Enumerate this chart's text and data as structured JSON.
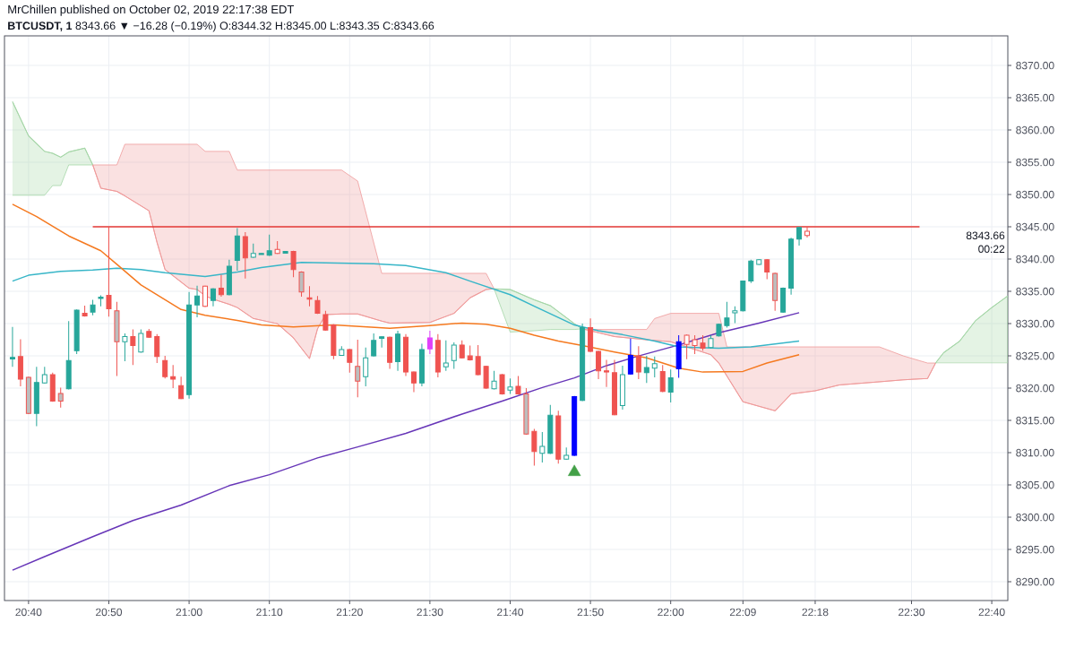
{
  "chart_data": {
    "type": "candlestick",
    "title": "MrChillen published on October 02, 2019 22:17:38 EDT",
    "subtitle": "**BTCUSDT, 1** 8343.66 ▼ −16.28 (−0.19%) O:8344.32 H:8345.00 L:8343.35 C:8343.66",
    "annotations": [
      "8343.66",
      "00:22"
    ],
    "xlim": [
      "2019-10-02T20:37",
      "2019-10-02T22:42"
    ],
    "ylim": [
      8287.1,
      8374.6
    ],
    "xticks": [
      {
        "value": "2019-10-02T20:40",
        "label": "20:40"
      },
      {
        "value": "2019-10-02T20:50",
        "label": "20:50"
      },
      {
        "value": "2019-10-02T21:00",
        "label": "21:00"
      },
      {
        "value": "2019-10-02T21:10",
        "label": "21:10"
      },
      {
        "value": "2019-10-02T21:20",
        "label": "21:20"
      },
      {
        "value": "2019-10-02T21:30",
        "label": "21:30"
      },
      {
        "value": "2019-10-02T21:40",
        "label": "21:40"
      },
      {
        "value": "2019-10-02T21:50",
        "label": "21:50"
      },
      {
        "value": "2019-10-02T22:00",
        "label": "22:00"
      },
      {
        "value": "2019-10-02T22:09",
        "label": "22:09"
      },
      {
        "value": "2019-10-02T22:18",
        "label": "22:18"
      },
      {
        "value": "2019-10-02T22:30",
        "label": "22:30"
      },
      {
        "value": "2019-10-02T22:40",
        "label": "22:40"
      }
    ],
    "yticks": [
      {
        "value": 8290,
        "label": "8290.00"
      },
      {
        "value": 8295,
        "label": "8295.00"
      },
      {
        "value": 8300,
        "label": "8300.00"
      },
      {
        "value": 8305,
        "label": "8305.00"
      },
      {
        "value": 8310,
        "label": "8310.00"
      },
      {
        "value": 8315,
        "label": "8315.00"
      },
      {
        "value": 8320,
        "label": "8320.00"
      },
      {
        "value": 8325,
        "label": "8325.00"
      },
      {
        "value": 8330,
        "label": "8330.00"
      },
      {
        "value": 8335,
        "label": "8335.00"
      },
      {
        "value": 8340,
        "label": "8340.00"
      },
      {
        "value": 8345,
        "label": "8345.00"
      },
      {
        "value": 8350,
        "label": "8350.00"
      },
      {
        "value": 8355,
        "label": "8355.00"
      },
      {
        "value": 8360,
        "label": "8360.00"
      },
      {
        "value": 8365,
        "label": "8365.00"
      },
      {
        "value": 8370,
        "label": "8370.00"
      }
    ],
    "grid": true,
    "series": [
      {
        "type": "line",
        "color": "#a5d6a7",
        "x": [
          "2019-10-02T20:38",
          "2019-10-02T20:40",
          "2019-10-02T20:42",
          "2019-10-02T20:43",
          "2019-10-02T20:44",
          "2019-10-02T20:45",
          "2019-10-02T20:47",
          "2019-10-02T20:48"
        ],
        "values": [
          8364.4,
          8359.1,
          8356.7,
          8356.4,
          8355.8,
          8356.6,
          8357.2,
          8354.6
        ],
        "upper": [
          8364.4,
          8359.1,
          8356.7,
          8356.4,
          8355.8,
          8356.6,
          8357.2,
          8354.6
        ],
        "lower": [
          8349.9,
          8349.9,
          8349.9,
          8351.4,
          8351.4,
          8354.6,
          8354.6,
          8354.6
        ]
      },
      {
        "type": "line",
        "color": "#ef9a9a",
        "x": [
          "2019-10-02T20:48",
          "2019-10-02T20:49",
          "2019-10-02T20:51",
          "2019-10-02T20:52",
          "2019-10-02T20:55",
          "2019-10-02T20:56",
          "2019-10-02T20:57",
          "2019-10-02T21:00",
          "2019-10-02T21:01",
          "2019-10-02T21:02",
          "2019-10-02T21:03",
          "2019-10-02T21:05",
          "2019-10-02T21:06",
          "2019-10-02T21:08",
          "2019-10-02T21:11",
          "2019-10-02T21:13",
          "2019-10-02T21:15",
          "2019-10-02T21:16",
          "2019-10-02T21:17",
          "2019-10-02T21:19",
          "2019-10-02T21:21",
          "2019-10-02T21:24",
          "2019-10-02T21:25",
          "2019-10-02T21:30",
          "2019-10-02T21:33",
          "2019-10-02T21:35",
          "2019-10-02T21:37",
          "2019-10-02T21:38"
        ],
        "values": [
          8354.6,
          8351.0,
          8350.5,
          8349.8,
          8347.5,
          8342.6,
          8338.4,
          8335.5,
          8335.3,
          8334.3,
          8333.8,
          8333.0,
          8332.5,
          8330.8,
          8330.0,
          8327.8,
          8324.6,
          8329.2,
          8331.4,
          8331.5,
          8331.5,
          8330.4,
          8330.1,
          8330.2,
          8331.6,
          8334.0,
          8335.3,
          8335.4
        ],
        "upper": [
          8354.6,
          8354.6,
          8354.6,
          8357.8,
          8357.8,
          8357.8,
          8357.8,
          8357.8,
          8357.8,
          8356.7,
          8356.7,
          8356.7,
          8353.8,
          8353.8,
          8353.8,
          8353.8,
          8353.8,
          8353.8,
          8353.8,
          8353.8,
          8352.1,
          8337.8,
          8337.8,
          8337.8,
          8337.8,
          8337.8,
          8337.8,
          8335.4
        ],
        "lower": [
          8354.6,
          8351.0,
          8350.5,
          8349.8,
          8347.5,
          8342.6,
          8338.4,
          8335.5,
          8335.3,
          8334.3,
          8333.8,
          8333.0,
          8332.5,
          8330.8,
          8330.0,
          8327.8,
          8324.6,
          8329.2,
          8331.4,
          8331.5,
          8331.5,
          8330.4,
          8330.1,
          8330.2,
          8331.6,
          8334.0,
          8335.3,
          8335.4
        ]
      },
      {
        "type": "line",
        "color": "#a5d6a7",
        "x": [
          "2019-10-02T21:38",
          "2019-10-02T21:40",
          "2019-10-02T21:43",
          "2019-10-02T21:45",
          "2019-10-02T21:48",
          "2019-10-02T21:49"
        ],
        "values": [
          8335.4,
          8335.3,
          8333.7,
          8332.8,
          8330.0,
          8329.2
        ],
        "upper": [
          8335.4,
          8335.3,
          8333.7,
          8332.8,
          8330.0,
          8329.2
        ],
        "lower": [
          8335.4,
          8328.7,
          8328.9,
          8329.1,
          8329.1,
          8329.2
        ]
      },
      {
        "type": "line",
        "color": "#ef9a9a",
        "x": [
          "2019-10-02T21:49",
          "2019-10-02T21:50",
          "2019-10-02T21:53",
          "2019-10-02T21:57",
          "2019-10-02T21:58",
          "2019-10-02T22:00",
          "2019-10-02T22:05",
          "2019-10-02T22:06",
          "2019-10-02T22:07",
          "2019-10-02T22:09",
          "2019-10-02T22:13",
          "2019-10-02T22:15",
          "2019-10-02T22:18",
          "2019-10-02T22:21",
          "2019-10-02T22:26",
          "2019-10-02T22:29",
          "2019-10-02T22:32",
          "2019-10-02T22:33"
        ],
        "values": [
          8329.2,
          8328.9,
          8328.0,
          8327.5,
          8327.4,
          8327.2,
          8325.2,
          8323.9,
          8321.9,
          8317.9,
          8316.5,
          8319.1,
          8319.6,
          8320.5,
          8321.0,
          8321.3,
          8321.5,
          8323.9
        ],
        "upper": [
          8329.2,
          8329.1,
          8329.1,
          8329.1,
          8330.8,
          8331.6,
          8331.6,
          8331.6,
          8326.4,
          8326.4,
          8326.4,
          8326.4,
          8326.4,
          8326.4,
          8326.4,
          8325.0,
          8323.9,
          8323.9
        ],
        "lower": [
          8329.2,
          8328.9,
          8328.0,
          8327.5,
          8327.4,
          8327.2,
          8325.2,
          8323.9,
          8321.9,
          8317.9,
          8316.5,
          8319.1,
          8319.6,
          8320.5,
          8321.0,
          8321.3,
          8321.5,
          8323.9
        ]
      },
      {
        "type": "line",
        "color": "#a5d6a7",
        "x": [
          "2019-10-02T22:33",
          "2019-10-02T22:34",
          "2019-10-02T22:36",
          "2019-10-02T22:38",
          "2019-10-02T22:40",
          "2019-10-02T22:42"
        ],
        "values": [
          8323.9,
          8325.5,
          8327.3,
          8330.5,
          8332.5,
          8334.3
        ],
        "upper": [
          8323.9,
          8325.5,
          8327.3,
          8330.5,
          8332.5,
          8334.3
        ],
        "lower": [
          8323.9,
          8323.9,
          8323.9,
          8323.9,
          8323.9,
          8323.9
        ]
      },
      {
        "type": "line",
        "color": "#6736b8",
        "x": [
          "2019-10-02T20:38",
          "2019-10-02T20:42",
          "2019-10-02T20:48",
          "2019-10-02T20:53",
          "2019-10-02T20:59",
          "2019-10-02T21:05",
          "2019-10-02T21:10",
          "2019-10-02T21:16",
          "2019-10-02T21:21",
          "2019-10-02T21:27",
          "2019-10-02T21:34",
          "2019-10-02T21:39",
          "2019-10-02T21:44",
          "2019-10-02T21:48",
          "2019-10-02T21:52",
          "2019-10-02T21:56",
          "2019-10-02T22:01",
          "2019-10-02T22:06",
          "2019-10-02T22:11",
          "2019-10-02T22:16"
        ],
        "values": [
          8291.8,
          8293.9,
          8297.0,
          8299.5,
          8301.9,
          8304.9,
          8306.6,
          8309.2,
          8310.9,
          8313.0,
          8316.0,
          8318.0,
          8320.1,
          8321.6,
          8323.5,
          8325.0,
          8326.7,
          8328.6,
          8330.1,
          8331.7
        ]
      },
      {
        "type": "line",
        "color": "#38b6c8",
        "x": [
          "2019-10-02T20:38",
          "2019-10-02T20:40",
          "2019-10-02T20:44",
          "2019-10-02T20:48",
          "2019-10-02T20:51",
          "2019-10-02T20:54",
          "2019-10-02T20:57",
          "2019-10-02T21:02",
          "2019-10-02T21:06",
          "2019-10-02T21:09",
          "2019-10-02T21:14",
          "2019-10-02T21:23",
          "2019-10-02T21:27",
          "2019-10-02T21:32",
          "2019-10-02T21:35",
          "2019-10-02T21:40",
          "2019-10-02T21:43",
          "2019-10-02T21:48",
          "2019-10-02T21:51",
          "2019-10-02T21:54",
          "2019-10-02T21:58",
          "2019-10-02T22:01",
          "2019-10-02T22:06",
          "2019-10-02T22:10",
          "2019-10-02T22:16"
        ],
        "values": [
          8336.6,
          8337.5,
          8338.1,
          8338.3,
          8338.6,
          8338.4,
          8337.9,
          8337.3,
          8338.0,
          8338.7,
          8339.5,
          8339.3,
          8339.0,
          8337.9,
          8336.6,
          8334.5,
          8332.7,
          8329.8,
          8328.9,
          8328.3,
          8327.3,
          8326.4,
          8326.2,
          8326.4,
          8327.3
        ]
      },
      {
        "type": "line",
        "color": "#f5791f",
        "x": [
          "2019-10-02T20:38",
          "2019-10-02T20:41",
          "2019-10-02T20:45",
          "2019-10-02T20:49",
          "2019-10-02T20:51",
          "2019-10-02T20:54",
          "2019-10-02T20:57",
          "2019-10-02T20:59",
          "2019-10-02T21:02",
          "2019-10-02T21:06",
          "2019-10-02T21:09",
          "2019-10-02T21:13",
          "2019-10-02T21:18",
          "2019-10-02T21:25",
          "2019-10-02T21:30",
          "2019-10-02T21:34",
          "2019-10-02T21:37",
          "2019-10-02T21:40",
          "2019-10-02T21:43",
          "2019-10-02T21:46",
          "2019-10-02T21:49",
          "2019-10-02T21:53",
          "2019-10-02T21:57",
          "2019-10-02T22:01",
          "2019-10-02T22:04",
          "2019-10-02T22:09",
          "2019-10-02T22:12",
          "2019-10-02T22:16"
        ],
        "values": [
          8348.5,
          8346.6,
          8343.6,
          8341.3,
          8339.2,
          8336.0,
          8333.7,
          8332.2,
          8331.3,
          8330.5,
          8329.8,
          8329.5,
          8329.8,
          8329.3,
          8329.7,
          8330.1,
          8329.9,
          8329.3,
          8328.2,
          8327.3,
          8326.6,
          8325.6,
          8324.7,
          8323.1,
          8322.5,
          8322.6,
          8323.9,
          8325.2
        ]
      },
      {
        "type": "line",
        "color": "#e53935",
        "x": [
          "2019-10-02T20:48",
          "2019-10-02T22:31"
        ],
        "values": [
          8345,
          8345
        ]
      },
      {
        "x": [
          "2019-10-02T20:38",
          "2019-10-02T20:39",
          "2019-10-02T20:40",
          "2019-10-02T20:41",
          "2019-10-02T20:42",
          "2019-10-02T20:43",
          "2019-10-02T20:44",
          "2019-10-02T20:45",
          "2019-10-02T20:46",
          "2019-10-02T20:47",
          "2019-10-02T20:48",
          "2019-10-02T20:49",
          "2019-10-02T20:50",
          "2019-10-02T20:51",
          "2019-10-02T20:52",
          "2019-10-02T20:53",
          "2019-10-02T20:54",
          "2019-10-02T20:55",
          "2019-10-02T20:56",
          "2019-10-02T20:57",
          "2019-10-02T20:58",
          "2019-10-02T20:59",
          "2019-10-02T21:00",
          "2019-10-02T21:01",
          "2019-10-02T21:02",
          "2019-10-02T21:03",
          "2019-10-02T21:04",
          "2019-10-02T21:05",
          "2019-10-02T21:06",
          "2019-10-02T21:07",
          "2019-10-02T21:08",
          "2019-10-02T21:09",
          "2019-10-02T21:10",
          "2019-10-02T21:11",
          "2019-10-02T21:12",
          "2019-10-02T21:13",
          "2019-10-02T21:14",
          "2019-10-02T21:15",
          "2019-10-02T21:16",
          "2019-10-02T21:17",
          "2019-10-02T21:18",
          "2019-10-02T21:19",
          "2019-10-02T21:20",
          "2019-10-02T21:21",
          "2019-10-02T21:22",
          "2019-10-02T21:23",
          "2019-10-02T21:24",
          "2019-10-02T21:25",
          "2019-10-02T21:26",
          "2019-10-02T21:27",
          "2019-10-02T21:28",
          "2019-10-02T21:29",
          "2019-10-02T21:30",
          "2019-10-02T21:31",
          "2019-10-02T21:32",
          "2019-10-02T21:33",
          "2019-10-02T21:34",
          "2019-10-02T21:35",
          "2019-10-02T21:36",
          "2019-10-02T21:37",
          "2019-10-02T21:38",
          "2019-10-02T21:39",
          "2019-10-02T21:40",
          "2019-10-02T21:41",
          "2019-10-02T21:42",
          "2019-10-02T21:43",
          "2019-10-02T21:44",
          "2019-10-02T21:45",
          "2019-10-02T21:46",
          "2019-10-02T21:47",
          "2019-10-02T21:48",
          "2019-10-02T21:49",
          "2019-10-02T21:50",
          "2019-10-02T21:51",
          "2019-10-02T21:52",
          "2019-10-02T21:53",
          "2019-10-02T21:54",
          "2019-10-02T21:55",
          "2019-10-02T21:56",
          "2019-10-02T21:57",
          "2019-10-02T21:58",
          "2019-10-02T21:59",
          "2019-10-02T22:00",
          "2019-10-02T22:01",
          "2019-10-02T22:02",
          "2019-10-02T22:03",
          "2019-10-02T22:04",
          "2019-10-02T22:05",
          "2019-10-02T22:06",
          "2019-10-02T22:07",
          "2019-10-02T22:08",
          "2019-10-02T22:09",
          "2019-10-02T22:10",
          "2019-10-02T22:11",
          "2019-10-02T22:12",
          "2019-10-02T22:13",
          "2019-10-02T22:14",
          "2019-10-02T22:15",
          "2019-10-02T22:16",
          "2019-10-02T22:17"
        ],
        "ohlc": [
          [
            8324.6,
            8329.5,
            8323.3,
            8324.7
          ],
          [
            8324.9,
            8327.6,
            8320.3,
            8321.4
          ],
          [
            8321.7,
            8321.8,
            8316.0,
            8316.1
          ],
          [
            8316.1,
            8323.3,
            8314.1,
            8320.9
          ],
          [
            8320.8,
            8323.3,
            8320.7,
            8322.1
          ],
          [
            8322.1,
            8322.4,
            8317.9,
            8318.0
          ],
          [
            8319.2,
            8320.1,
            8317.0,
            8318.0
          ],
          [
            8319.9,
            8330.4,
            8319.8,
            8324.3
          ],
          [
            8325.8,
            8332.2,
            8325.3,
            8332.1
          ],
          [
            8331.6,
            8332.8,
            8331.1,
            8331.2
          ],
          [
            8331.8,
            8333.7,
            8331.3,
            8332.9
          ],
          [
            8333.9,
            8334.4,
            8332.7,
            8334.1
          ],
          [
            8334.4,
            8345.0,
            8331.1,
            8332.3
          ],
          [
            8332.0,
            8333.4,
            8321.9,
            8327.2
          ],
          [
            8327.2,
            8328.5,
            8324.2,
            8328.0
          ],
          [
            8328.0,
            8329.1,
            8323.6,
            8326.6
          ],
          [
            8325.6,
            8329.1,
            8325.5,
            8328.5
          ],
          [
            8328.8,
            8329.2,
            8327.8,
            8327.9
          ],
          [
            8328.0,
            8328.4,
            8323.9,
            8324.9
          ],
          [
            8324.3,
            8325.0,
            8321.5,
            8321.8
          ],
          [
            8321.8,
            8323.6,
            8320.0,
            8321.4
          ],
          [
            8320.4,
            8321.8,
            8318.3,
            8318.4
          ],
          [
            8319.0,
            8334.9,
            8318.4,
            8332.9
          ],
          [
            8332.9,
            8335.9,
            8331.0,
            8334.3
          ],
          [
            8335.8,
            8335.9,
            8332.6,
            8332.7
          ],
          [
            8333.6,
            8335.5,
            8332.7,
            8335.4
          ],
          [
            8335.5,
            8337.6,
            8334.2,
            8334.5
          ],
          [
            8334.5,
            8339.9,
            8334.4,
            8338.9
          ],
          [
            8339.8,
            8344.8,
            8338.2,
            8343.6
          ],
          [
            8343.5,
            8344.2,
            8337.0,
            8340.2
          ],
          [
            8340.3,
            8342.4,
            8340.2,
            8340.9
          ],
          [
            8340.8,
            8340.9,
            8340.7,
            8340.8
          ],
          [
            8340.6,
            8343.8,
            8340.5,
            8341.3
          ],
          [
            8341.5,
            8342.8,
            8340.8,
            8340.9
          ],
          [
            8341.0,
            8341.2,
            8341.0,
            8341.1
          ],
          [
            8341.2,
            8341.3,
            8337.2,
            8338.4
          ],
          [
            8338.0,
            8338.1,
            8334.2,
            8334.9
          ],
          [
            8334.0,
            8335.8,
            8332.7,
            8333.8
          ],
          [
            8333.6,
            8334.3,
            8331.5,
            8331.6
          ],
          [
            8331.4,
            8332.0,
            8328.9,
            8329.0
          ],
          [
            8329.8,
            8329.9,
            8324.5,
            8325.1
          ],
          [
            8325.1,
            8326.5,
            8325.0,
            8326.0
          ],
          [
            8326.0,
            8326.1,
            8322.4,
            8324.0
          ],
          [
            8323.4,
            8327.5,
            8318.6,
            8321.1
          ],
          [
            8321.8,
            8326.3,
            8320.3,
            8324.7
          ],
          [
            8325.0,
            8328.5,
            8324.9,
            8327.4
          ],
          [
            8327.8,
            8328.0,
            8326.3,
            8327.9
          ],
          [
            8327.9,
            8328.0,
            8323.0,
            8324.0
          ],
          [
            8324.1,
            8328.9,
            8322.7,
            8328.4
          ],
          [
            8327.9,
            8328.4,
            8321.9,
            8322.5
          ],
          [
            8322.5,
            8322.6,
            8319.4,
            8320.8
          ],
          [
            8320.8,
            8326.9,
            8320.3,
            8326.0
          ],
          [
            8326.1,
            8328.9,
            8325.3,
            8327.8
          ],
          [
            8327.4,
            8328.4,
            8321.7,
            8322.5
          ],
          [
            8323.3,
            8327.4,
            8322.7,
            8323.9
          ],
          [
            8324.3,
            8327.1,
            8323.0,
            8326.7
          ],
          [
            8326.7,
            8327.4,
            8324.6,
            8324.7
          ],
          [
            8325.0,
            8326.6,
            8324.3,
            8324.4
          ],
          [
            8324.9,
            8326.7,
            8322.0,
            8322.1
          ],
          [
            8323.4,
            8323.5,
            8319.9,
            8320.0
          ],
          [
            8319.9,
            8322.7,
            8319.8,
            8321.1
          ],
          [
            8322.1,
            8322.2,
            8319.0,
            8319.1
          ],
          [
            8319.7,
            8321.5,
            8319.1,
            8320.2
          ],
          [
            8320.3,
            8321.9,
            8319.0,
            8319.1
          ],
          [
            8319.1,
            8320.0,
            8312.8,
            8312.9
          ],
          [
            8313.3,
            8313.7,
            8308.0,
            8310.2
          ],
          [
            8309.9,
            8313.2,
            8308.5,
            8311.0
          ],
          [
            8309.9,
            8317.4,
            8309.8,
            8315.8
          ],
          [
            8315.7,
            8316.5,
            8308.3,
            8309.0
          ],
          [
            8309.0,
            8310.8,
            8308.9,
            8309.6
          ],
          [
            8309.6,
            8318.8,
            8309.5,
            8318.7
          ],
          [
            8318.1,
            8330.0,
            8318.0,
            8329.4
          ],
          [
            8329.4,
            8330.8,
            8325.6,
            8325.7
          ],
          [
            8325.7,
            8325.8,
            8321.4,
            8322.7
          ],
          [
            8322.7,
            8324.4,
            8320.2,
            8322.5
          ],
          [
            8322.4,
            8324.4,
            8315.8,
            8315.9
          ],
          [
            8317.3,
            8323.5,
            8316.7,
            8322.1
          ],
          [
            8322.2,
            8327.7,
            8322.1,
            8325.1
          ],
          [
            8325.0,
            8326.5,
            8321.4,
            8322.5
          ],
          [
            8322.4,
            8325.0,
            8320.8,
            8323.2
          ],
          [
            8323.1,
            8324.9,
            8321.7,
            8323.8
          ],
          [
            8322.6,
            8323.6,
            8319.4,
            8319.5
          ],
          [
            8319.4,
            8322.9,
            8317.8,
            8321.6
          ],
          [
            8323.0,
            8328.2,
            8321.6,
            8327.2
          ],
          [
            8328.2,
            8328.3,
            8324.5,
            8326.8
          ],
          [
            8327.5,
            8328.2,
            8325.3,
            8326.6
          ],
          [
            8327.0,
            8328.2,
            8325.8,
            8326.2
          ],
          [
            8326.3,
            8328.2,
            8326.2,
            8327.7
          ],
          [
            8328.1,
            8330.0,
            8328.0,
            8329.9
          ],
          [
            8329.7,
            8333.4,
            8329.4,
            8330.9
          ],
          [
            8331.7,
            8332.7,
            8330.1,
            8332.0
          ],
          [
            8332.0,
            8336.7,
            8331.9,
            8336.6
          ],
          [
            8336.6,
            8339.9,
            8336.3,
            8339.7
          ],
          [
            8339.2,
            8340.0,
            8339.1,
            8339.9
          ],
          [
            8339.9,
            8340.0,
            8336.9,
            8338.0
          ],
          [
            8337.8,
            8337.9,
            8332.0,
            8333.6
          ],
          [
            8331.8,
            8335.6,
            8331.7,
            8335.5
          ],
          [
            8335.5,
            8343.3,
            8334.5,
            8343.1
          ],
          [
            8343.1,
            8345.0,
            8342.1,
            8344.9
          ],
          [
            8344.32,
            8345.0,
            8343.35,
            8343.66
          ]
        ],
        "colors": [
          "#26a69a",
          "#ef5350",
          "#bdbdbd",
          "#26a69a",
          "#ffffff",
          "#ef5350",
          "#bdbdbd",
          "#26a69a",
          "#26a69a",
          "#ef5350",
          "#26a69a",
          "#26a69a",
          "#ef5350",
          "#bdbdbd",
          "#ffffff",
          "#ef5350",
          "#ffffff",
          "#ef5350",
          "#ef5350",
          "#ef5350",
          "#ef5350",
          "#ef5350",
          "#26a69a",
          "#26a69a",
          "#ffffff",
          "#26a69a",
          "#ef5350",
          "#26a69a",
          "#26a69a",
          "#ef5350",
          "#ffffff",
          "#26a69a",
          "#26a69a",
          "#ffffff",
          "#26a69a",
          "#ef5350",
          "#bdbdbd",
          "#ef5350",
          "#ef5350",
          "#ef5350",
          "#ef5350",
          "#ffffff",
          "#ef5350",
          "#bdbdbd",
          "#ffffff",
          "#26a69a",
          "#26a69a",
          "#ef5350",
          "#26a69a",
          "#ef5350",
          "#ef5350",
          "#26a69a",
          "#e040fb",
          "#ef5350",
          "#ffffff",
          "#ffffff",
          "#ef5350",
          "#ef5350",
          "#ef5350",
          "#ef5350",
          "#ffffff",
          "#ef5350",
          "#ffffff",
          "#ef5350",
          "#bdbdbd",
          "#ef5350",
          "#ffffff",
          "#26a69a",
          "#ef5350",
          "#ffffff",
          "#0000ff",
          "#26a69a",
          "#ef5350",
          "#ef5350",
          "#ef5350",
          "#ef5350",
          "#ffffff",
          "#0000ff",
          "#ef5350",
          "#26a69a",
          "#ffffff",
          "#ef5350",
          "#26a69a",
          "#0000ff",
          "#ffffff",
          "#ffffff",
          "#ef5350",
          "#ffffff",
          "#26a69a",
          "#26a69a",
          "#ffffff",
          "#26a69a",
          "#26a69a",
          "#ffffff",
          "#ef5350",
          "#bdbdbd",
          "#26a69a",
          "#26a69a",
          "#26a69a",
          "#ffffff"
        ]
      },
      {
        "type": "scatter",
        "color": "#43a047",
        "marker": "triangle",
        "x": [
          "2019-10-02T21:48"
        ],
        "values": [
          8307.0
        ]
      }
    ]
  }
}
